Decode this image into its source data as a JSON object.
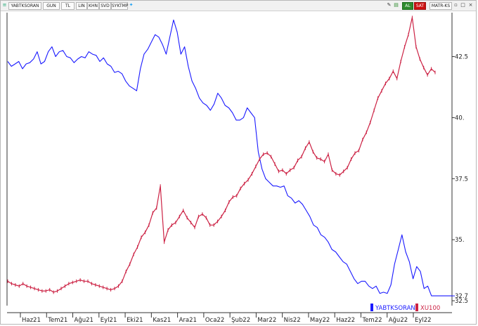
{
  "toolbar": {
    "symbol": "YABTKSORAN",
    "period": "GUN",
    "currency": "TL",
    "chart_types": [
      "LIN",
      "KHN",
      "SVD",
      "SYKTMP"
    ],
    "right_buttons": [
      "AL",
      "SAT",
      "MATR-KS"
    ]
  },
  "colors": {
    "yabtksoran": "#1a1aff",
    "xu100": "#cc2244",
    "al": "#2e8b2e",
    "sat": "#cc1111"
  },
  "chart_data": {
    "type": "line",
    "y_axis": {
      "ticks": [
        32.5,
        35,
        37.5,
        40,
        42.5
      ],
      "tick_labels": [
        "32.5",
        "35.",
        "37.5",
        "40.",
        "42.5"
      ],
      "ylim": [
        32.3,
        44.3
      ],
      "position": "right"
    },
    "x_axis": {
      "labels": [
        "Haz21",
        "Tem21",
        "Ağu21",
        "Eyl21",
        "Eki21",
        "Kas21",
        "Ara21",
        "Oca22",
        "Şub22",
        "Mar22",
        "Nis22",
        "May22",
        "Haz22",
        "Tem22",
        "Ağu22",
        "Eyl22"
      ]
    },
    "last_value_label": "32.7",
    "legend": {
      "placement": "bottom-right"
    },
    "series": [
      {
        "name": "YABTKSORAN",
        "values": [
          42.3,
          42.1,
          42.2,
          42.3,
          42.0,
          42.2,
          42.25,
          42.4,
          42.7,
          42.2,
          42.3,
          42.7,
          42.9,
          42.5,
          42.7,
          42.75,
          42.5,
          42.45,
          42.25,
          42.4,
          42.5,
          42.45,
          42.7,
          42.6,
          42.55,
          42.3,
          42.45,
          42.2,
          42.1,
          41.85,
          41.9,
          41.8,
          41.5,
          41.3,
          41.2,
          41.1,
          42.0,
          42.6,
          42.8,
          43.1,
          43.4,
          43.3,
          43.0,
          42.6,
          43.3,
          44.0,
          43.5,
          42.6,
          42.9,
          42.1,
          41.5,
          41.2,
          40.8,
          40.6,
          40.5,
          40.3,
          40.55,
          41.0,
          40.8,
          40.5,
          40.4,
          40.2,
          39.9,
          39.9,
          40.0,
          40.4,
          40.2,
          40.0,
          38.6,
          37.9,
          37.5,
          37.35,
          37.2,
          37.2,
          37.15,
          37.2,
          36.8,
          36.7,
          36.5,
          36.6,
          36.45,
          36.2,
          35.95,
          35.6,
          35.5,
          35.2,
          35.1,
          34.9,
          34.6,
          34.5,
          34.3,
          34.1,
          34.0,
          33.7,
          33.4,
          33.2,
          33.3,
          33.3,
          33.1,
          33.0,
          33.1,
          32.8,
          32.85,
          32.8,
          33.15,
          34.0,
          34.6,
          35.2,
          34.5,
          34.1,
          33.4,
          33.9,
          33.7,
          33.0,
          33.1,
          32.7,
          32.7
        ]
      },
      {
        "name": "XU100",
        "values": [
          33.3,
          33.2,
          33.15,
          33.1,
          33.2,
          33.1,
          33.05,
          33.0,
          32.95,
          32.9,
          32.9,
          32.95,
          32.85,
          32.9,
          33.0,
          33.1,
          33.2,
          33.25,
          33.3,
          33.35,
          33.3,
          33.3,
          33.2,
          33.15,
          33.1,
          33.05,
          33.0,
          32.95,
          33.0,
          33.1,
          33.3,
          33.7,
          34.0,
          34.4,
          34.7,
          35.1,
          35.3,
          35.6,
          36.1,
          36.3,
          37.2,
          34.9,
          35.4,
          35.6,
          35.7,
          35.95,
          36.2,
          35.9,
          35.7,
          35.5,
          35.95,
          36.05,
          35.9,
          35.6,
          35.6,
          35.75,
          35.95,
          36.2,
          36.55,
          36.75,
          36.8,
          37.1,
          37.3,
          37.45,
          37.7,
          38.0,
          38.3,
          38.5,
          38.55,
          38.4,
          38.1,
          37.8,
          37.85,
          37.7,
          37.85,
          37.95,
          38.25,
          38.4,
          38.75,
          39.0,
          38.6,
          38.35,
          38.3,
          38.2,
          38.5,
          37.85,
          37.7,
          37.65,
          37.8,
          37.95,
          38.3,
          38.55,
          38.65,
          39.1,
          39.4,
          39.8,
          40.3,
          40.8,
          41.1,
          41.4,
          41.6,
          41.9,
          41.6,
          42.3,
          42.9,
          43.4,
          44.1,
          42.9,
          42.4,
          42.05,
          41.75,
          42.0,
          41.85
        ]
      }
    ]
  }
}
